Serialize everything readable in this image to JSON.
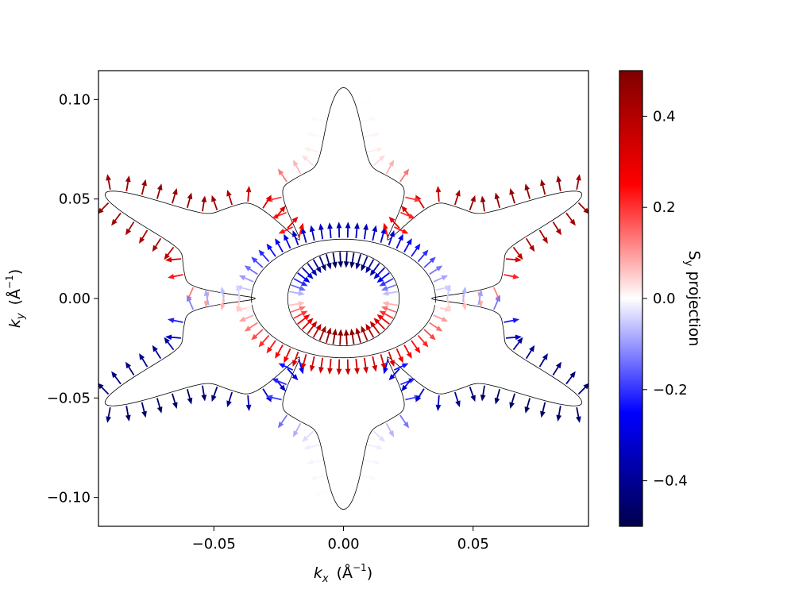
{
  "chart_data": {
    "type": "quiver",
    "title": "",
    "xlabel": {
      "main": "k",
      "sub": "x",
      "unit_prefix": "(Å",
      "unit_exp": "−1",
      "unit_suffix": ")"
    },
    "ylabel": {
      "main": "k",
      "sub": "y",
      "unit_prefix": "(Å",
      "unit_exp": "−1",
      "unit_suffix": ")"
    },
    "xlim": [
      -0.0945,
      0.0945
    ],
    "ylim": [
      -0.1145,
      0.1145
    ],
    "x_ticks": [
      -0.05,
      0.0,
      0.05
    ],
    "x_tick_labels": [
      "−0.05",
      "0.00",
      "0.05"
    ],
    "y_ticks": [
      -0.1,
      -0.05,
      0.0,
      0.05,
      0.1
    ],
    "y_tick_labels": [
      "−0.10",
      "−0.05",
      "0.00",
      "0.05",
      "0.10"
    ],
    "grid": false,
    "colorbar": {
      "label_main": "S",
      "label_sub": "y",
      "label_rest": " projection",
      "range": [
        -0.5,
        0.5
      ],
      "ticks": [
        -0.4,
        -0.2,
        0.0,
        0.2,
        0.4
      ],
      "tick_labels": [
        "−0.4",
        "−0.2",
        "0.0",
        "0.2",
        "0.4"
      ],
      "colormap": "seismic",
      "colormap_stops": [
        "#00004c",
        "#0000ff",
        "#ffffff",
        "#ff0000",
        "#800000"
      ]
    },
    "contours": [
      {
        "name": "inner-ellipse",
        "shape": "ellipse",
        "center": [
          0,
          0
        ],
        "radii": [
          0.0215,
          0.0238
        ]
      },
      {
        "name": "middle-ellipse",
        "shape": "ellipse",
        "center": [
          0,
          0
        ],
        "radii": [
          0.0355,
          0.0298
        ]
      },
      {
        "name": "outer-star",
        "shape": "hexagonal-star",
        "tip_radius": 0.1045,
        "waist_radius": 0.058,
        "inner_lobe_radius": 0.043,
        "tips_at_angles_deg": [
          90,
          30,
          -30,
          -90,
          -150,
          150
        ]
      }
    ],
    "arrow_fields": [
      {
        "contour": "inner-ellipse",
        "direction": "inward",
        "sy_pattern": "-0.48*sin(theta)"
      },
      {
        "contour": "middle-ellipse",
        "direction": "outward",
        "sy_pattern": "-0.35*sin(theta)"
      },
      {
        "contour": "outer-star",
        "direction": "outward",
        "sy_pattern": "0.3*sin(theta)+0.3*sin(3*theta)"
      }
    ]
  }
}
